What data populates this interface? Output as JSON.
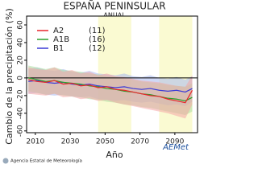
{
  "chart_data": {
    "type": "line",
    "title": "ESPAÑA PENINSULAR",
    "subtitle": "ANUAL",
    "y_label": "Cambio de la precipitación (%)",
    "x_label": "Año",
    "footer": "Agencia Estatal de Meteorología",
    "logo": "AEMet",
    "x": [
      2006,
      2011,
      2016,
      2021,
      2026,
      2031,
      2036,
      2041,
      2046,
      2051,
      2056,
      2061,
      2066,
      2071,
      2076,
      2081,
      2086,
      2091,
      2096,
      2100
    ],
    "xlim": [
      2005,
      2103
    ],
    "xticks": [
      2010,
      2030,
      2050,
      2070,
      2090
    ],
    "ylim": [
      -62,
      70
    ],
    "yticks": [
      -60,
      -40,
      -20,
      0,
      20,
      40,
      60
    ],
    "highlight_ranges": [
      [
        2046,
        2065
      ],
      [
        2081,
        2100
      ]
    ],
    "highlight_color": "#fafad2",
    "series": [
      {
        "name": "A2",
        "count_label": "(11)",
        "color": "#e8262b",
        "band_color": "#f4a6a6",
        "values": [
          -2,
          -4,
          -5,
          -3,
          -7,
          -6,
          -9,
          -8,
          -11,
          -10,
          -13,
          -14,
          -16,
          -18,
          -20,
          -21,
          -24,
          -26,
          -28,
          -14
        ],
        "high": [
          12,
          10,
          9,
          12,
          7,
          9,
          5,
          7,
          3,
          5,
          2,
          1,
          -1,
          -3,
          -4,
          -5,
          -7,
          -9,
          -10,
          3
        ],
        "low": [
          -18,
          -19,
          -20,
          -18,
          -22,
          -21,
          -24,
          -23,
          -26,
          -25,
          -28,
          -30,
          -32,
          -34,
          -36,
          -38,
          -40,
          -43,
          -46,
          -30
        ]
      },
      {
        "name": "A1B",
        "count_label": "(16)",
        "color": "#2ca02c",
        "band_color": "#a9dca0",
        "values": [
          0,
          -2,
          -4,
          -3,
          -5,
          -6,
          -7,
          -9,
          -10,
          -12,
          -13,
          -15,
          -16,
          -18,
          -19,
          -21,
          -23,
          -24,
          -26,
          -22
        ],
        "high": [
          14,
          12,
          10,
          12,
          9,
          8,
          7,
          5,
          4,
          2,
          1,
          -1,
          -2,
          -4,
          -5,
          -6,
          -8,
          -9,
          -10,
          -6
        ],
        "low": [
          -15,
          -17,
          -19,
          -18,
          -20,
          -21,
          -22,
          -24,
          -25,
          -27,
          -28,
          -30,
          -31,
          -33,
          -34,
          -36,
          -38,
          -40,
          -42,
          -38
        ]
      },
      {
        "name": "B1",
        "count_label": "(12)",
        "color": "#3b3bd6",
        "band_color": "#a8b8ee",
        "values": [
          -4,
          -3,
          -5,
          -6,
          -5,
          -7,
          -8,
          -7,
          -9,
          -10,
          -11,
          -10,
          -12,
          -13,
          -12,
          -14,
          -15,
          -14,
          -16,
          -12
        ],
        "high": [
          10,
          12,
          9,
          8,
          10,
          7,
          6,
          8,
          5,
          4,
          3,
          5,
          2,
          1,
          3,
          0,
          -1,
          1,
          -2,
          2
        ],
        "low": [
          -18,
          -17,
          -19,
          -20,
          -19,
          -21,
          -22,
          -21,
          -24,
          -25,
          -26,
          -25,
          -27,
          -28,
          -27,
          -29,
          -31,
          -30,
          -32,
          -27
        ]
      }
    ]
  }
}
